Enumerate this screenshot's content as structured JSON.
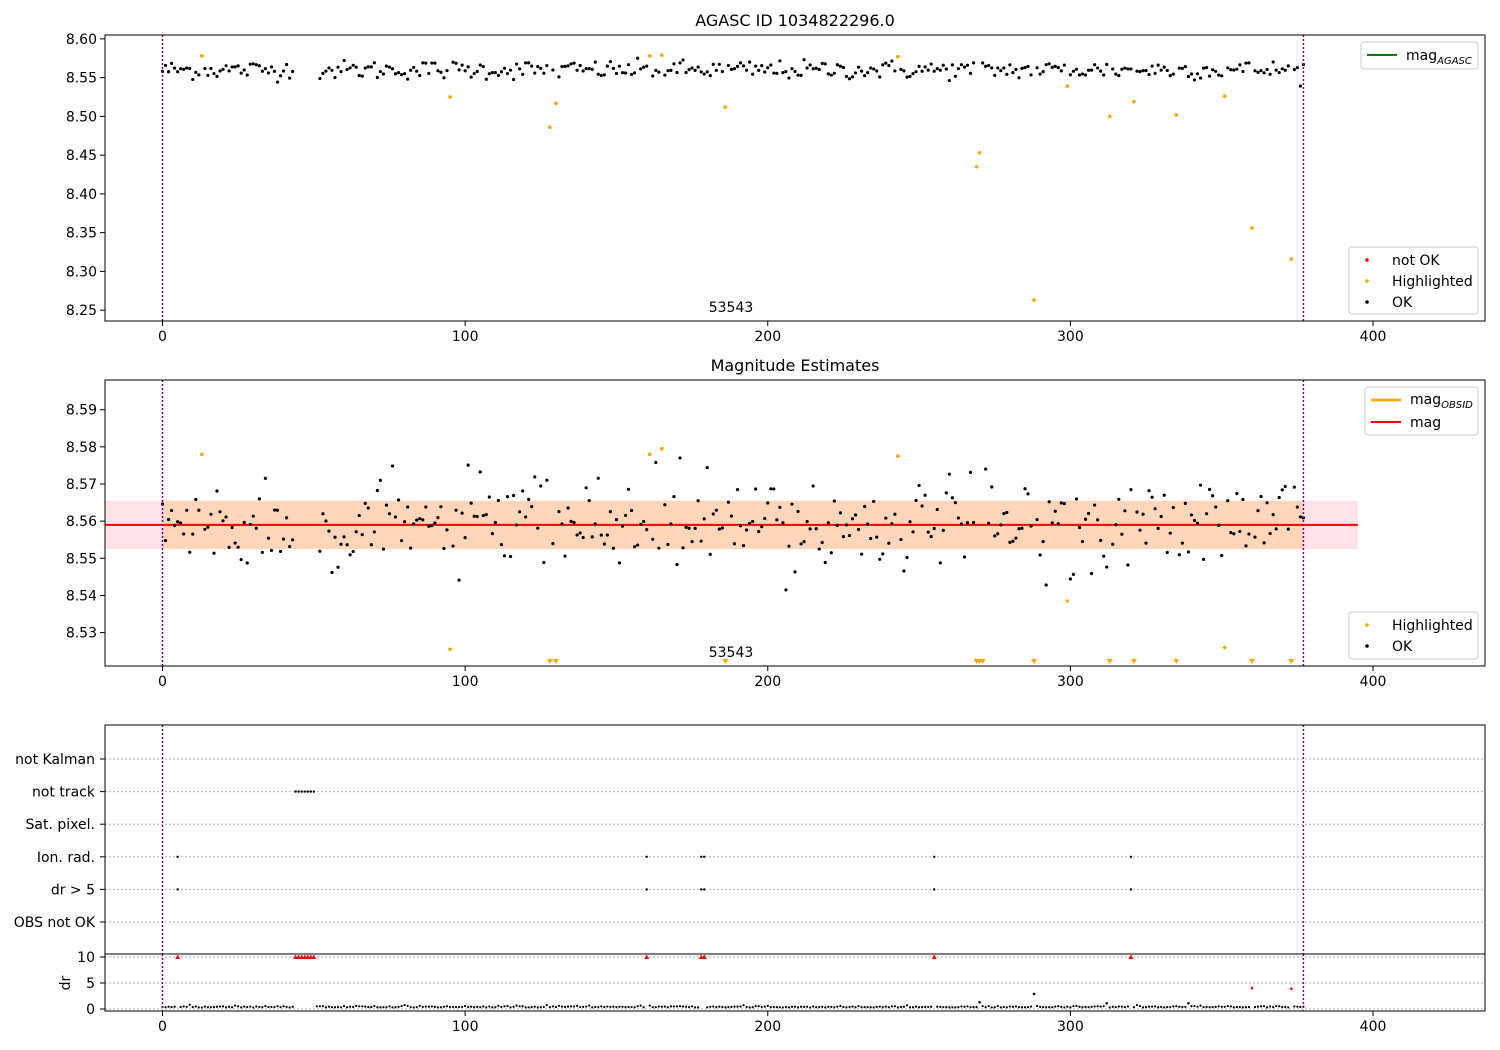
{
  "chart_data": [
    {
      "type": "scatter",
      "title": "AGASC ID 1034822296.0",
      "annotation": "53543",
      "xlim": [
        -19,
        437
      ],
      "ylim": [
        8.236,
        8.605
      ],
      "xticks": [
        0,
        100,
        200,
        300,
        400
      ],
      "yticks": [
        8.25,
        8.3,
        8.35,
        8.4,
        8.45,
        8.5,
        8.55,
        8.6
      ],
      "vlines": [
        0,
        377
      ],
      "legend_line": [
        {
          "label_main": "mag",
          "label_sub": "AGASC",
          "color": "#008000"
        }
      ],
      "legend_points": [
        {
          "label": "not OK",
          "color": "#ff0000"
        },
        {
          "label": "Highlighted",
          "color": "#ffa500"
        },
        {
          "label": "OK",
          "color": "#000000"
        }
      ],
      "gaps": [
        [
          44,
          51
        ]
      ],
      "n_points": 378,
      "ok_series": {
        "center": 8.56,
        "spread": 0.006
      },
      "highlighted": [
        {
          "x": 13,
          "y": 8.578
        },
        {
          "x": 95,
          "y": 8.525
        },
        {
          "x": 128,
          "y": 8.486
        },
        {
          "x": 130,
          "y": 8.517
        },
        {
          "x": 161,
          "y": 8.578
        },
        {
          "x": 165,
          "y": 8.579
        },
        {
          "x": 186,
          "y": 8.512
        },
        {
          "x": 243,
          "y": 8.577
        },
        {
          "x": 269,
          "y": 8.435
        },
        {
          "x": 270,
          "y": 8.453
        },
        {
          "x": 288,
          "y": 8.263
        },
        {
          "x": 299,
          "y": 8.539
        },
        {
          "x": 313,
          "y": 8.5
        },
        {
          "x": 321,
          "y": 8.519
        },
        {
          "x": 335,
          "y": 8.502
        },
        {
          "x": 351,
          "y": 8.526
        },
        {
          "x": 360,
          "y": 8.356
        },
        {
          "x": 373,
          "y": 8.316
        }
      ]
    },
    {
      "type": "scatter",
      "title": "Magnitude Estimates",
      "annotation": "53543",
      "xlim": [
        -19,
        437
      ],
      "ylim": [
        8.521,
        8.598
      ],
      "xticks": [
        0,
        100,
        200,
        300,
        400
      ],
      "yticks": [
        8.53,
        8.54,
        8.55,
        8.56,
        8.57,
        8.58,
        8.59
      ],
      "vlines": [
        0,
        377
      ],
      "mag_line": {
        "y": 8.559,
        "band": [
          8.5525,
          8.5655
        ],
        "x_range": [
          -19,
          395
        ]
      },
      "legend_line": [
        {
          "label_main": "mag",
          "label_sub": "OBSID",
          "color": "#ffa500"
        },
        {
          "label_main": "mag",
          "label_sub": "",
          "color": "#ff0000"
        }
      ],
      "legend_points": [
        {
          "label": "Highlighted",
          "color": "#ffa500"
        },
        {
          "label": "OK",
          "color": "#000000"
        }
      ],
      "gaps": [
        [
          44,
          51
        ]
      ],
      "n_points": 378,
      "ok_series": {
        "center": 8.559,
        "spread": 0.006
      },
      "highlighted": [
        {
          "x": 13,
          "y": 8.578
        },
        {
          "x": 95,
          "y": 8.5255
        },
        {
          "x": 161,
          "y": 8.578
        },
        {
          "x": 165,
          "y": 8.5795
        },
        {
          "x": 243,
          "y": 8.5775
        },
        {
          "x": 299,
          "y": 8.5385
        },
        {
          "x": 351,
          "y": 8.526
        }
      ],
      "offscale_markers_x": [
        128,
        130,
        186,
        269,
        270,
        271,
        288,
        313,
        321,
        335,
        360,
        373
      ]
    },
    {
      "type": "scatter",
      "xlim": [
        -19,
        437
      ],
      "xticks": [
        0,
        100,
        200,
        300,
        400
      ],
      "vlines": [
        0,
        377
      ],
      "flag_rows": [
        "not Kalman",
        "not track",
        "Sat. pixel.",
        "Ion. rad.",
        "dr > 5",
        "OBS not OK"
      ],
      "flags": {
        "not Kalman": [],
        "not track": [
          44,
          45,
          46,
          47,
          48,
          49,
          50
        ],
        "Sat. pixel.": [],
        "Ion. rad.": [
          5,
          160,
          178,
          179,
          255,
          320
        ],
        "dr > 5": [
          5,
          160,
          178,
          179,
          255,
          320
        ],
        "OBS not OK": []
      }
    },
    {
      "type": "scatter",
      "ylabel": "dr",
      "xlim": [
        -19,
        437
      ],
      "ylim": [
        -0.5,
        10.3
      ],
      "yticks": [
        0,
        5,
        10
      ],
      "xticks": [
        0,
        100,
        200,
        300,
        400
      ],
      "vlines": [
        0,
        377
      ],
      "capped_value": 10,
      "capped_points_x": [
        5,
        44,
        45,
        46,
        47,
        48,
        49,
        50,
        160,
        178,
        179,
        255,
        320
      ],
      "red_points": [
        {
          "x": 360,
          "y": 4
        },
        {
          "x": 373,
          "y": 3.9
        }
      ],
      "outliers": [
        {
          "x": 270,
          "y": 1.3
        },
        {
          "x": 288,
          "y": 2.9
        },
        {
          "x": 312,
          "y": 1.1
        },
        {
          "x": 339,
          "y": 1.1
        }
      ],
      "baseline": 0.3
    }
  ]
}
